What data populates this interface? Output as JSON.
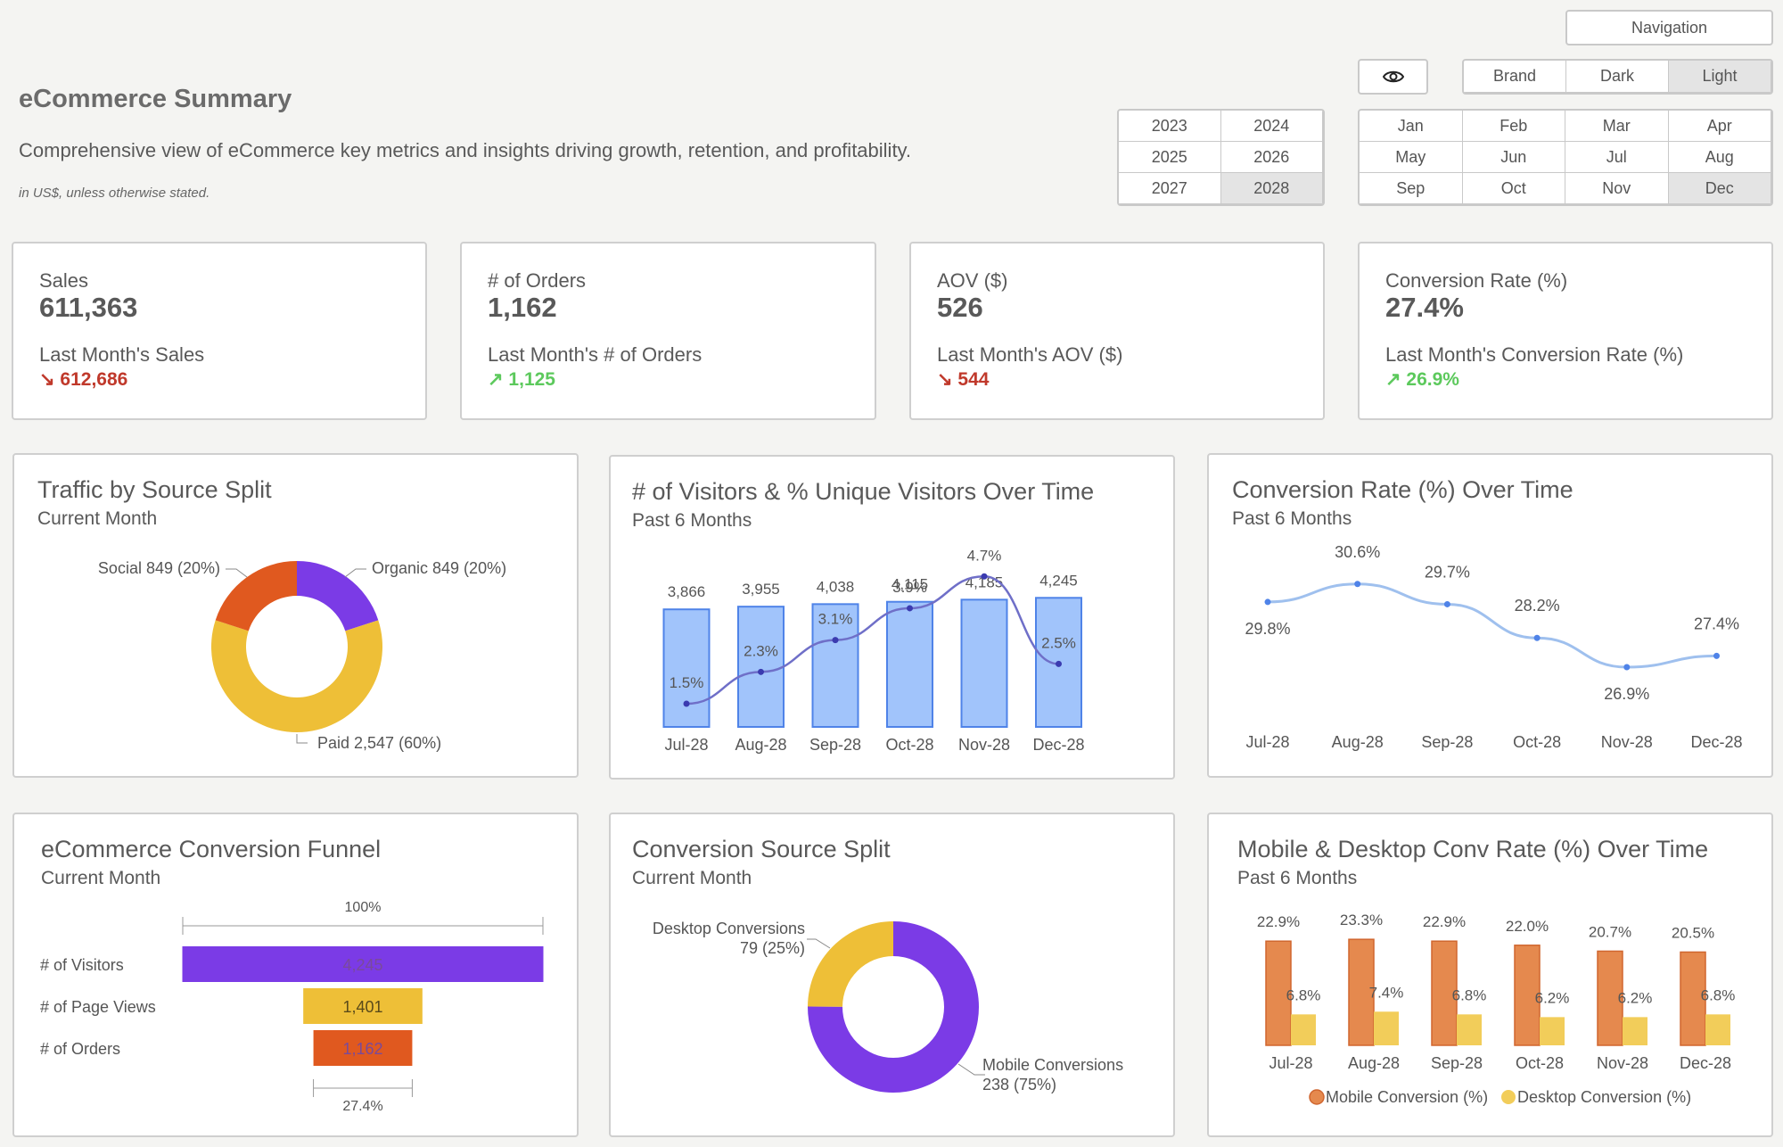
{
  "header": {
    "title": "eCommerce Summary",
    "subtitle": "Comprehensive view of eCommerce key metrics and insights driving growth, retention, and profitability.",
    "note": "in US$, unless otherwise stated."
  },
  "controls": {
    "navigation": "Navigation",
    "eye_icon": "eye-icon",
    "themes": [
      "Brand",
      "Dark",
      "Light"
    ],
    "selected_theme": "Light",
    "years": [
      "2023",
      "2024",
      "2025",
      "2026",
      "2027",
      "2028"
    ],
    "selected_year": "2028",
    "months": [
      "Jan",
      "Feb",
      "Mar",
      "Apr",
      "May",
      "Jun",
      "Jul",
      "Aug",
      "Sep",
      "Oct",
      "Nov",
      "Dec"
    ],
    "selected_month": "Dec"
  },
  "kpis": [
    {
      "label": "Sales",
      "value": "611,363",
      "last_label": "Last Month's Sales",
      "last_value": "↘ 612,686",
      "trend": "down"
    },
    {
      "label": "# of Orders",
      "value": "1,162",
      "last_label": "Last Month's # of Orders",
      "last_value": "↗ 1,125",
      "trend": "up"
    },
    {
      "label": "AOV ($)",
      "value": "526",
      "last_label": "Last Month's AOV ($)",
      "last_value": "↘ 544",
      "trend": "down"
    },
    {
      "label": "Conversion Rate (%)",
      "value": "27.4%",
      "last_label": "Last Month's Conversion Rate (%)",
      "last_value": "↗ 26.9%",
      "trend": "up"
    }
  ],
  "colors": {
    "purple": "#7b3be6",
    "orange": "#e0591f",
    "yellow": "#eebf37",
    "blue_bar": "#a1c4fb",
    "blue_bar_stroke": "#4f83e8",
    "line_purple": "#6f6fc8",
    "line_blue": "#9fc0ee",
    "mobile": "#e5894e",
    "desktop": "#f2cd5a",
    "down": "#c0392b",
    "up": "#5cc95c"
  },
  "charts": {
    "traffic": {
      "title": "Traffic by Source Split",
      "subtitle": "Current Month"
    },
    "visitors": {
      "title": "# of Visitors & % Unique Visitors Over Time",
      "subtitle": "Past 6 Months"
    },
    "conversion": {
      "title": "Conversion Rate (%) Over Time",
      "subtitle": "Past 6 Months"
    },
    "funnel": {
      "title": "eCommerce Conversion Funnel",
      "subtitle": "Current Month"
    },
    "source": {
      "title": "Conversion Source Split",
      "subtitle": "Current Month"
    },
    "device": {
      "title": "Mobile & Desktop Conv Rate (%) Over Time",
      "subtitle": "Past 6 Months"
    }
  },
  "chart_data": [
    {
      "type": "pie",
      "title": "Traffic by Source Split",
      "subtitle": "Current Month",
      "slices": [
        {
          "name": "Organic",
          "value": 849,
          "label": "Organic 849 (20%)"
        },
        {
          "name": "Paid",
          "value": 2547,
          "label": "Paid 2,547 (60%)"
        },
        {
          "name": "Social",
          "value": 849,
          "label": "Social 849 (20%)"
        }
      ]
    },
    {
      "type": "bar",
      "title": "# of Visitors & % Unique Visitors Over Time",
      "subtitle": "Past 6 Months",
      "categories": [
        "Jul-28",
        "Aug-28",
        "Sep-28",
        "Oct-28",
        "Nov-28",
        "Dec-28"
      ],
      "series": [
        {
          "values": [
            3866,
            3955,
            4038,
            4115,
            4185,
            4245
          ],
          "labels": [
            "3,866",
            "3,955",
            "4,038",
            "4,115",
            "4,185",
            "4,245"
          ]
        },
        {
          "values": [
            1.5,
            2.3,
            3.1,
            3.9,
            4.7,
            2.5
          ],
          "labels": [
            "1.5%",
            "2.3%",
            "3.1%",
            "3.9%",
            "4.7%",
            "2.5%"
          ]
        }
      ]
    },
    {
      "type": "line",
      "title": "Conversion Rate (%) Over Time",
      "subtitle": "Past 6 Months",
      "categories": [
        "Jul-28",
        "Aug-28",
        "Sep-28",
        "Oct-28",
        "Nov-28",
        "Dec-28"
      ],
      "series": [
        {
          "values": [
            29.8,
            30.6,
            29.7,
            28.2,
            26.9,
            27.4
          ],
          "labels": [
            "29.8%",
            "30.6%",
            "29.7%",
            "28.2%",
            "26.9%",
            "27.4%"
          ]
        }
      ]
    },
    {
      "type": "bar",
      "title": "eCommerce Conversion Funnel",
      "subtitle": "Current Month",
      "categories": [
        "# of Visitors",
        "# of Page Views",
        "# of Orders"
      ],
      "values": [
        4245,
        1401,
        1162
      ],
      "labels": [
        "4,245",
        "1,401",
        "1,162"
      ],
      "top_annotation": "100%",
      "bottom_annotation": "27.4%"
    },
    {
      "type": "pie",
      "title": "Conversion Source Split",
      "subtitle": "Current Month",
      "slices": [
        {
          "name": "Mobile Conversions",
          "value": 238,
          "label_line1": "Mobile Conversions",
          "label_line2": "238 (75%)"
        },
        {
          "name": "Desktop Conversions",
          "value": 79,
          "label_line1": "Desktop Conversions",
          "label_line2": "79 (25%)"
        }
      ]
    },
    {
      "type": "bar",
      "title": "Mobile & Desktop Conv Rate (%) Over Time",
      "subtitle": "Past 6 Months",
      "categories": [
        "Jul-28",
        "Aug-28",
        "Sep-28",
        "Oct-28",
        "Nov-28",
        "Dec-28"
      ],
      "series": [
        {
          "name": "Mobile Conversion (%)",
          "values": [
            22.9,
            23.3,
            22.9,
            22.0,
            20.7,
            20.5
          ],
          "labels": [
            "22.9%",
            "23.3%",
            "22.9%",
            "22.0%",
            "20.7%",
            "20.5%"
          ]
        },
        {
          "name": "Desktop Conversion (%)",
          "values": [
            6.8,
            7.4,
            6.8,
            6.2,
            6.2,
            6.8
          ],
          "labels": [
            "6.8%",
            "7.4%",
            "6.8%",
            "6.2%",
            "6.2%",
            "6.8%"
          ]
        }
      ],
      "legend": "bottom"
    }
  ]
}
